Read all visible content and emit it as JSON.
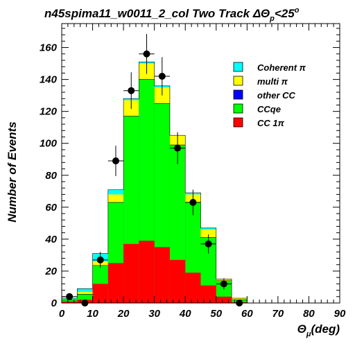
{
  "chart_data": {
    "type": "bar",
    "stacked": true,
    "title": "n45spima11_w0011_2_col Two Track ΔΘ",
    "title_sub": "p",
    "title_suffix": "<25",
    "title_sup": "o",
    "xlabel": "Θ",
    "xlabel_sub": "μ",
    "xlabel_suffix": "(deg)",
    "ylabel": "Number of Events",
    "xlim": [
      0,
      90
    ],
    "ylim": [
      0,
      175
    ],
    "bin_width": 5,
    "x_ticks": [
      0,
      10,
      20,
      30,
      40,
      50,
      60,
      70,
      80,
      90
    ],
    "y_ticks": [
      0,
      20,
      40,
      60,
      80,
      100,
      120,
      140,
      160
    ],
    "bin_edges": [
      0,
      5,
      10,
      15,
      20,
      25,
      30,
      35,
      40,
      45,
      50,
      55,
      60
    ],
    "cumulative_series": [
      {
        "name": "Coherent π",
        "color": "#00ffff",
        "values": [
          3,
          9,
          31,
          71,
          128,
          151,
          136,
          105,
          69,
          47,
          15,
          3
        ]
      },
      {
        "name": "multi π",
        "color": "#ffff00",
        "values": [
          2.5,
          7,
          26,
          68,
          127,
          150,
          135,
          105,
          68,
          46,
          15,
          3
        ]
      },
      {
        "name": "other CC",
        "color": "#0000ff",
        "values": [
          2,
          5.5,
          23.5,
          63,
          117,
          140,
          125,
          99,
          63,
          41,
          14,
          2
        ]
      },
      {
        "name": "CCqe",
        "color": "#00ff00",
        "values": [
          2,
          5.5,
          23.5,
          63,
          117,
          140,
          125,
          99,
          63,
          41,
          14,
          2
        ]
      },
      {
        "name": "CC 1π",
        "color": "#ff0000",
        "values": [
          1,
          2,
          12,
          25,
          37,
          39,
          35,
          27,
          19,
          11,
          4,
          0.5
        ]
      }
    ],
    "data_points": {
      "x": [
        2.5,
        7.5,
        12.5,
        17.5,
        22.5,
        27.5,
        32.5,
        37.5,
        42.5,
        47.5,
        52.5,
        57.5
      ],
      "y": [
        4,
        0,
        27,
        89,
        133,
        156,
        142,
        97,
        63,
        37,
        12,
        0
      ],
      "err": [
        2,
        0,
        5,
        9.5,
        11.5,
        12.5,
        12,
        10,
        8,
        6,
        3.5,
        0
      ]
    },
    "legend_position": "top-right",
    "grid": false
  }
}
